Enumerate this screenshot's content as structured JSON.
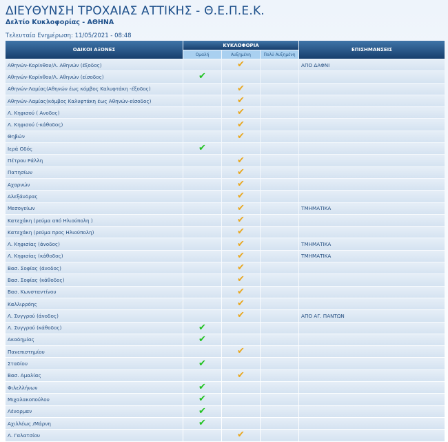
{
  "header": {
    "title": "ΔΙΕΥΘΥΝΣΗ ΤΡΟΧΑΙΑΣ ΑΤΤΙΚΗΣ - Θ.Ε.Π.Ε.Κ.",
    "subtitle": "Δελτίο Κυκλοφορίας - ΑΘΗΝΑ",
    "update_label": "Τελευταία Ενημέρωση:",
    "update_value": "11/05/2021 - 08:48"
  },
  "columns": {
    "roads": "ΟΔΙΚΟΙ ΑΞΟΝΕΣ",
    "traffic": "ΚΥΚΛΟΦΟΡΙΑ",
    "normal": "Ομαλή",
    "increased": "Αυξημένη",
    "very_increased": "Πολύ Αυξημένη",
    "notes": "ΕΠΙΣΗΜΑΝΣΕΙΣ"
  },
  "colors": {
    "normal_check": "#1fc21f",
    "increased_check": "#e9a61c",
    "header": "#1d4f8a"
  },
  "icons": {
    "check": "✔"
  },
  "rows": [
    {
      "road": "Αθηνών-Κορίνθου/Λ. Αθηνών (έξοδος)",
      "status": "increased",
      "note": "ΑΠΟ ΔΑΦΝΙ"
    },
    {
      "road": "Αθηνών-Κορίνθου/Λ. Αθηνών (είσοδος)",
      "status": "normal",
      "note": ""
    },
    {
      "road": "Αθηνών-Λαμίας(Αθηνών έως κόμβος Καλυφτάκη -έξοδος)",
      "status": "increased",
      "note": ""
    },
    {
      "road": "Αθηνών-Λαμίας(κόμβος Καλυφτάκη έως Αθηνών-είσοδος)",
      "status": "increased",
      "note": ""
    },
    {
      "road": "Λ. Κηφισού ( Ανοδος)",
      "status": "increased",
      "note": ""
    },
    {
      "road": "Λ. Κηφισού (-κάθοδος)",
      "status": "increased",
      "note": ""
    },
    {
      "road": "Θηβών",
      "status": "increased",
      "note": ""
    },
    {
      "road": "Ιερά Οδός",
      "status": "normal",
      "note": ""
    },
    {
      "road": "Πέτρου Ράλλη",
      "status": "increased",
      "note": ""
    },
    {
      "road": "Πατησίων",
      "status": "increased",
      "note": ""
    },
    {
      "road": "Αχαρνών",
      "status": "increased",
      "note": ""
    },
    {
      "road": "Αλεξάνδρας",
      "status": "increased",
      "note": ""
    },
    {
      "road": "Μεσογείων",
      "status": "increased",
      "note": "ΤΜΗΜΑΤΙΚΑ"
    },
    {
      "road": "Κατεχάκη (ρεύμα από Ηλιούπολη )",
      "status": "increased",
      "note": ""
    },
    {
      "road": "Κατεχάκη (ρεύμα προς Ηλιούπολη)",
      "status": "increased",
      "note": ""
    },
    {
      "road": "Λ. Κηφισίας (άνοδος)",
      "status": "increased",
      "note": "ΤΜΗΜΑΤΙΚΑ"
    },
    {
      "road": "Λ. Κηφισίας (κάθοδος)",
      "status": "increased",
      "note": "ΤΜΗΜΑΤΙΚΑ"
    },
    {
      "road": "Βασ. Σοφίας (άνοδος)",
      "status": "increased",
      "note": ""
    },
    {
      "road": "Βασ. Σοφίας (κάθοδος)",
      "status": "increased",
      "note": ""
    },
    {
      "road": "Βασ. Κωνσταντίνου",
      "status": "increased",
      "note": ""
    },
    {
      "road": "Καλλιρρόης",
      "status": "increased",
      "note": ""
    },
    {
      "road": "Λ. Συγγρού (άνοδος)",
      "status": "increased",
      "note": "ΑΠΟ ΑΓ. ΠΑΝΤΩΝ"
    },
    {
      "road": "Λ. Συγγρού (κάθοδος)",
      "status": "normal",
      "note": ""
    },
    {
      "road": "Ακαδημίας",
      "status": "normal",
      "note": ""
    },
    {
      "road": "Πανεπιστημίου",
      "status": "increased",
      "note": ""
    },
    {
      "road": "Σταδίου",
      "status": "normal",
      "note": ""
    },
    {
      "road": "Βασ. Αμαλίας",
      "status": "increased",
      "note": ""
    },
    {
      "road": "Φιλελλήνων",
      "status": "normal",
      "note": ""
    },
    {
      "road": "Μιχαλακοπούλου",
      "status": "normal",
      "note": ""
    },
    {
      "road": "Λένορμαν",
      "status": "normal",
      "note": ""
    },
    {
      "road": "Αχιλλέως /Μάρνη",
      "status": "normal",
      "note": ""
    },
    {
      "road": "Λ. Γαλατσίου",
      "status": "increased",
      "note": ""
    }
  ]
}
